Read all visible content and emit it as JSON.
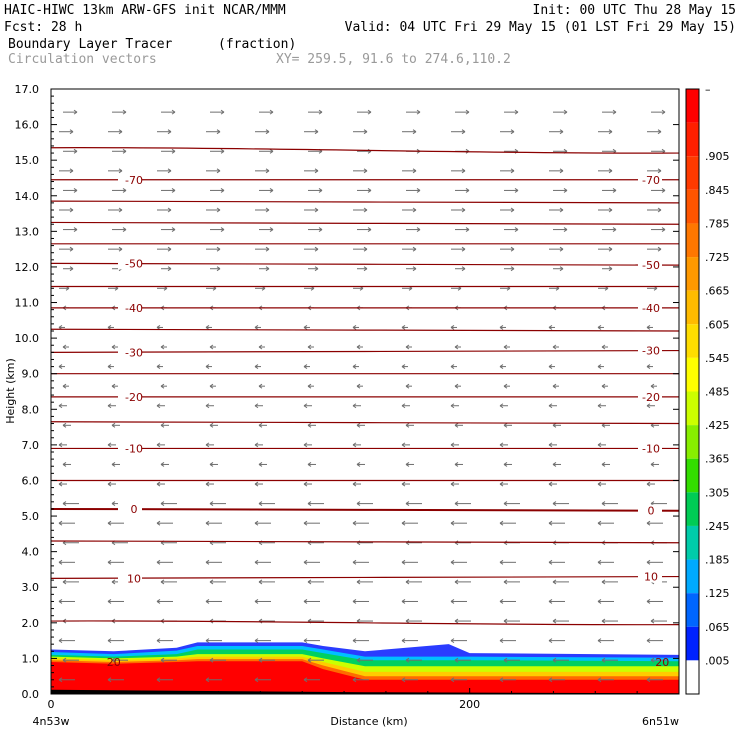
{
  "header": {
    "line1_left": "HAIC-HIWC 13km ARW-GFS init   NCAR/MMM",
    "line1_right": "Init: 00 UTC Thu 28 May 15",
    "line2_left": "Fcst:   28 h",
    "line2_right": "Valid: 04 UTC Fri 29 May 15 (01 LST Fri 29 May 15)",
    "line3_left": "Boundary Layer Tracer",
    "line3_mid": "(fraction)",
    "line4_left": "Circulation vectors",
    "line4_mid": "XY= 259.5, 91.6 to 274.6,110.2"
  },
  "chart_data": {
    "type": "heatmap",
    "ylabel": "Height (km)",
    "xlabel": "Distance (km)",
    "x_left_label": "4n53w",
    "x_right_label": "6n51w",
    "ylim": [
      0,
      17
    ],
    "xlim": [
      0,
      300
    ],
    "yticks": [
      "0.0",
      "1.0",
      "2.0",
      "3.0",
      "4.0",
      "5.0",
      "6.0",
      "7.0",
      "8.0",
      "9.0",
      "10.0",
      "11.0",
      "12.0",
      "13.0",
      "14.0",
      "15.0",
      "16.0",
      "17.0"
    ],
    "xticks": [
      {
        "value": 0,
        "label": "0"
      },
      {
        "value": 200,
        "label": "200"
      }
    ],
    "colorbar": {
      "labels": [
        "–",
        ".905",
        ".845",
        ".785",
        ".725",
        ".665",
        ".605",
        ".545",
        ".485",
        ".425",
        ".365",
        ".305",
        ".245",
        ".185",
        ".125",
        ".065",
        ".005"
      ],
      "colors": [
        "#ff0000",
        "#ff1f00",
        "#ff3a00",
        "#ff5500",
        "#ff7700",
        "#ff9900",
        "#ffbb00",
        "#ffdd00",
        "#ffff00",
        "#ccff00",
        "#88ee00",
        "#33dd00",
        "#00cc55",
        "#00ccaa",
        "#00aaff",
        "#0066ff",
        "#0022ff",
        "#ffffff"
      ]
    },
    "tracer_layers": [
      {
        "color": "#2a3cff",
        "x": [
          0,
          30,
          60,
          70,
          120,
          130,
          150,
          190,
          200,
          300
        ],
        "top": [
          1.25,
          1.2,
          1.3,
          1.45,
          1.45,
          1.35,
          1.2,
          1.4,
          1.15,
          1.1
        ]
      },
      {
        "color": "#00bfff",
        "x": [
          0,
          30,
          60,
          70,
          120,
          130,
          150,
          190,
          200,
          300
        ],
        "top": [
          1.18,
          1.12,
          1.22,
          1.35,
          1.35,
          1.25,
          1.05,
          1.05,
          1.05,
          1.02
        ]
      },
      {
        "color": "#00d060",
        "x": [
          0,
          30,
          60,
          70,
          120,
          130,
          150,
          190,
          200,
          300
        ],
        "top": [
          1.1,
          1.05,
          1.12,
          1.25,
          1.25,
          1.15,
          0.95,
          0.95,
          0.95,
          0.92
        ]
      },
      {
        "color": "#ccff00",
        "x": [
          0,
          30,
          60,
          70,
          120,
          130,
          150,
          190,
          200,
          300
        ],
        "top": [
          1.05,
          1.0,
          1.05,
          1.12,
          1.12,
          1.0,
          0.78,
          0.78,
          0.78,
          0.78
        ]
      },
      {
        "color": "#ffcc00",
        "x": [
          0,
          30,
          60,
          70,
          120,
          130,
          150,
          190,
          200,
          300
        ],
        "top": [
          1.0,
          0.95,
          1.0,
          1.05,
          1.05,
          0.9,
          0.62,
          0.62,
          0.62,
          0.62
        ]
      },
      {
        "color": "#ff6a00",
        "x": [
          0,
          30,
          60,
          70,
          120,
          130,
          150,
          190,
          200,
          300
        ],
        "top": [
          0.95,
          0.9,
          0.95,
          0.98,
          0.98,
          0.8,
          0.5,
          0.5,
          0.5,
          0.5
        ]
      },
      {
        "color": "#ff0000",
        "x": [
          0,
          30,
          60,
          70,
          120,
          130,
          150,
          190,
          200,
          300
        ],
        "top": [
          0.9,
          0.85,
          0.9,
          0.92,
          0.92,
          0.7,
          0.4,
          0.4,
          0.4,
          0.4
        ]
      }
    ],
    "terrain": {
      "x": [
        0,
        150,
        300
      ],
      "y": [
        0.12,
        0.05,
        0.02
      ]
    },
    "isotherms": [
      {
        "y": [
          5.2,
          5.15
        ],
        "label": "0",
        "bold": true,
        "label_left": true,
        "label_right": true
      },
      {
        "y": [
          4.3,
          4.25
        ],
        "label": "",
        "label_left": false,
        "label_right": false
      },
      {
        "y": [
          3.25,
          3.3
        ],
        "label": "10",
        "label_left": true,
        "label_right": true
      },
      {
        "y": [
          2.05,
          1.95
        ],
        "label": "",
        "label_left": false,
        "label_right": false
      },
      {
        "y": [
          6.0,
          6.0
        ],
        "label": "",
        "label_left": false,
        "label_right": false
      },
      {
        "y": [
          6.9,
          6.9
        ],
        "label": "-10",
        "label_left": true,
        "label_right": true
      },
      {
        "y": [
          7.65,
          7.6
        ],
        "label": "",
        "label_left": false,
        "label_right": false
      },
      {
        "y": [
          8.35,
          8.35
        ],
        "label": "-20",
        "label_left": true,
        "label_right": true
      },
      {
        "y": [
          9.0,
          9.0
        ],
        "label": "",
        "label_left": false,
        "label_right": false
      },
      {
        "y": [
          9.6,
          9.65
        ],
        "label": "-30",
        "label_left": true,
        "label_right": true
      },
      {
        "y": [
          10.25,
          10.2
        ],
        "label": "",
        "label_left": false,
        "label_right": false
      },
      {
        "y": [
          10.85,
          10.85
        ],
        "label": "-40",
        "label_left": true,
        "label_right": true
      },
      {
        "y": [
          11.45,
          11.45
        ],
        "label": "",
        "label_left": false,
        "label_right": false
      },
      {
        "y": [
          12.1,
          12.05
        ],
        "label": "-50",
        "label_left": true,
        "label_right": true
      },
      {
        "y": [
          12.65,
          12.65
        ],
        "label": "",
        "label_left": false,
        "label_right": false
      },
      {
        "y": [
          13.25,
          13.2
        ],
        "label": "",
        "label_left": false,
        "label_right": false
      },
      {
        "y": [
          13.85,
          13.8
        ],
        "label": "",
        "label_left": false,
        "label_right": false
      },
      {
        "y": [
          14.45,
          14.45
        ],
        "label": "-70",
        "label_left": true,
        "label_right": true
      },
      {
        "y": [
          15.35,
          15.2
        ],
        "label": "",
        "label_left": false,
        "label_right": false
      }
    ],
    "low_label": {
      "label": "20",
      "x": 30,
      "y": 0.9,
      "x_right": 292
    }
  }
}
